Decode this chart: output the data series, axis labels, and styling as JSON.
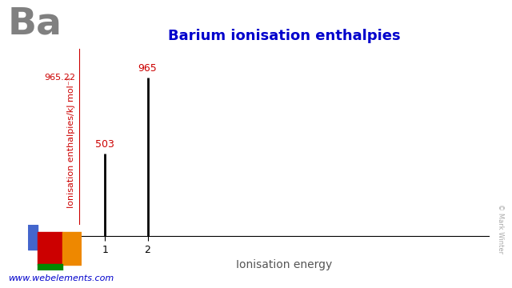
{
  "title": "Barium ionisation enthalpies",
  "element_symbol": "Ba",
  "xlabel": "Ionisation energy",
  "ylabel": "Ionisation enthalpies/kJ mol⁻¹",
  "ionisation_numbers": [
    1,
    2
  ],
  "ionisation_values": [
    503,
    965
  ],
  "max_value": 965.22,
  "ymax_label": "965.22",
  "bar_color": "#000000",
  "axis_color": "#cc0000",
  "title_color": "#0000cc",
  "element_color": "#808080",
  "ylabel_color": "#cc0000",
  "value_label_color": "#cc0000",
  "xlabel_color": "#555555",
  "website": "www.webelements.com",
  "website_color": "#0000cc",
  "copyright": "© Mark Winter",
  "background_color": "#ffffff"
}
